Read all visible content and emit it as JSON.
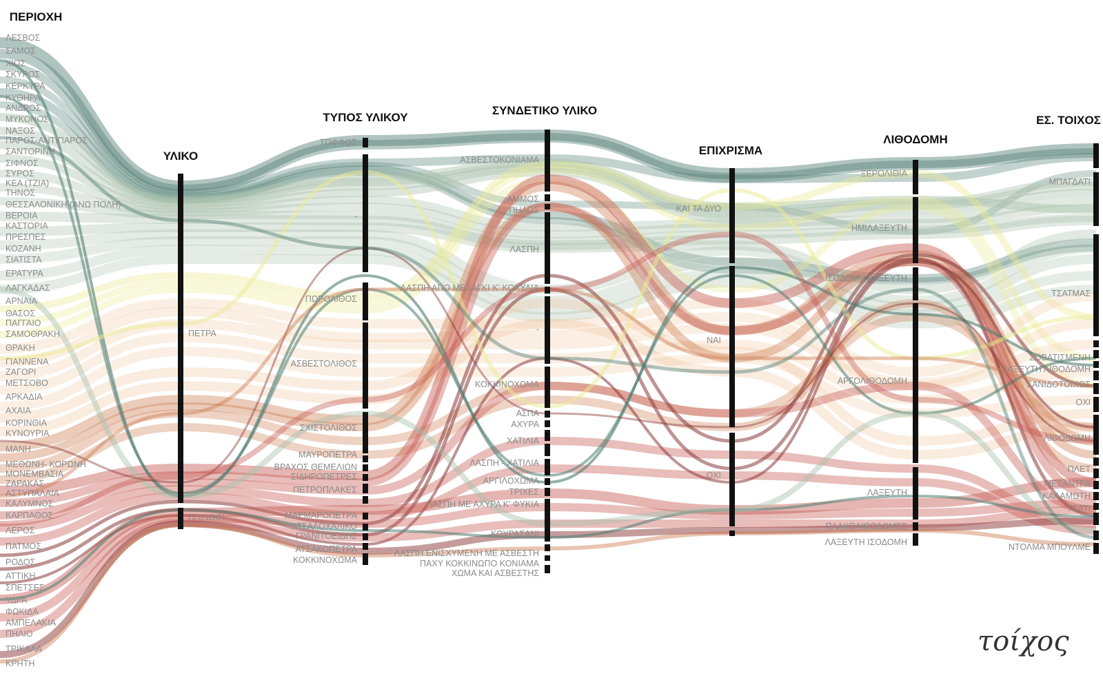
{
  "brand": "τοίχος",
  "colors": {
    "axis": "#111111",
    "label": "#8a8a8a",
    "green": "#4f7d72",
    "sage": "#a9c1ad",
    "yellow": "#ecec96",
    "peach": "#f1c9a2",
    "orange": "#cd7d52",
    "red": "#c65a52",
    "brown": "#8b3a3a"
  },
  "axes": [
    {
      "name": "ΠΕΡΙΟΧΗ",
      "labels": [
        "ΛΕΣΒΟΣ",
        "ΣΑΜΟΣ",
        "ΧΙΟΣ",
        "ΣΚΥΡΟΣ",
        "ΚΕΡΚΥΡΑ",
        "ΚΥΘΗΡΑ",
        "ΑΝΔΡΟΣ",
        "ΜΥΚΟΝΟΣ",
        "ΝΑΞΟΣ",
        "ΠΑΡΟΣ-ΑΝΤΙΠΑΡΟΣ",
        "ΣΑΝΤΟΡΙΝΗ",
        "ΣΙΦΝΟΣ",
        "ΣΥΡΟΣ",
        "ΚΕΑ (ΤΖΙΑ)",
        "ΤΗΝΟΣ",
        "ΘΕΣΣΑΛΟΝΙΚΗ (ΑΝΩ ΠΟΛΗ)",
        "ΒΕΡΟΙΑ",
        "ΚΑΣΤΟΡΙΑ",
        "ΠΡΕΣΠΕΣ",
        "ΚΟΖΑΝΗ",
        "ΣΙΑΤΙΣΤΑ",
        "ΕΡΑΤΥΡΑ",
        "ΛΑΓΚΑΔΑΣ",
        "ΑΡΝΑΙΑ",
        "ΘΑΣΟΣ",
        "ΠΑΓΓΑΙΟ",
        "ΣΑΜΟΘΡΑΚΗ",
        "ΘΡΑΚΗ",
        "ΓΙΑΝΝΕΝΑ",
        "ΖΑΓΟΡΙ",
        "ΜΕΤΣΟΒΟ",
        "ΑΡΚΑΔΙΑ",
        "ΑΧΑΙΑ",
        "ΚΟΡΙΝΘΙΑ",
        "ΚΥΝΟΥΡΙΑ",
        "ΜΑΝΗ",
        "ΜΕΘΩΝΗ- ΚΟΡΩΝΗ",
        "ΜΟΝΕΜΒΑΣΙΑ",
        "ΖΑΡΑΚΑΣ",
        "ΑΣΤΥΠΑΛΑΙΑ",
        "ΚΑΛΥΜΝΟΣ",
        "ΚΑΡΠΑΘΟΣ",
        "ΛΕΡΟΣ",
        "ΠΑΤΜΟΣ",
        "ΡΟΔΟΣ",
        "ΑΤΤΙΚΗ",
        "ΣΠΕΤΣΕΣ",
        "ΥΔΡΑ",
        "ΦΩΚΙΔΑ",
        "ΑΜΠΕΛΑΚΙΑ",
        "ΠΗΛΙΟ",
        "ΤΡΙΚΑΛΑ",
        "ΚΡΗΤΗ"
      ]
    },
    {
      "name": "ΥΛΙΚΟ",
      "labels": [
        "ΠΕΤΡΑ",
        "ΠΛΙΝΘΟΙ"
      ]
    },
    {
      "name": "ΤΥΠΟΣ ΥΛΙΚΟΥ",
      "labels": [
        "ΤΟΦΦΟΣ",
        "-",
        "ΠΩΡΟΛΙΘΟΣ",
        "ΑΣΒΕΣΤΟΛΙΘΟΣ",
        "ΣΧΙΣΤΟΛΙΘΟΣ",
        "ΜΑΥΡΟΠΕΤΡΑ",
        "ΒΡΑΧΟΣ ΘΕΜΕΛΙΩΝ",
        "ΣΙΔΗΡΟΠΕΤΡΕΣ",
        "ΠΕΤΡΟΠΛΑΚΕΣ",
        "ΜΑΡΜΑΡΟΠΕΤΡΑ",
        "ΑΤΣΑΛΟΧΑΛΙΚΟ",
        "ΓΡΑΝΙΤΟΕΙΔΗΣ",
        "ΑΤΣΑΚΟΠΕΤΡΑ",
        "ΚΟΚΚΙΝΟΧΩΜΑ"
      ]
    },
    {
      "name": "ΣΥΝΔΕΤΙΚΟ ΥΛΙΚΟ",
      "labels": [
        "ΑΣΒΕΣΤΟΚΟΝΙΑΜΑ",
        "ΑΜΜΟΣ",
        "ΠΗΛΟΣ",
        "ΛΑΣΠΗ",
        "ΛΑΣΠΗ ΑΠΟ ΜΕΛΑΓΚΙ Κ' ΚΟΧΥΛΙΑ",
        "-",
        "ΚΟΚΚΙΝΟΧΩΜΑ",
        "ΑΣΠΑ",
        "ΑΧΥΡΑ",
        "ΧΑΤΙΛΙΑ",
        "ΛΑΣΠΗ - ΧΑΤΙΛΙΑ",
        "ΑΡΓΙΛΟΧΩΜΑ",
        "ΤΡΙΧΕΣ",
        "ΛΑΣΠΗ ΜΕ ΑΧΥΡΑ Κ' ΦΥΚΙΑ",
        "ΚΟΥΡΑΣΑΝΙ",
        "ΛΑΣΠΗ ΕΝΙΣΧΥΜΕΝΗ ΜΕ ΑΣΒΕΣΤΗ",
        "ΠΑΧΥ ΚΟΚΚΙΝΩΠΟ ΚΟΝΙΑΜΑ",
        "ΧΩΜΑ ΚΑΙ ΑΣΒΕΣΤΗΣ"
      ]
    },
    {
      "name": "ΕΠΙΧΡΙΣΜΑ",
      "labels": [
        "ΚΑΙ ΤΑ ΔΥΟ",
        "ΝΑΙ",
        "ΟΧΙ"
      ]
    },
    {
      "name": "ΛΙΘΟΔΟΜΗ",
      "labels": [
        "ΞΕΡΟΛΙΘΙΑ",
        "ΗΜΙΛΑΞΕΥΤΗ",
        "ΙΣΟΔΟΜΗ ΛΑΞΕΥΤΗ",
        "ΑΡΓΟΛΙΘΟΔΟΜΗ",
        "ΛΑΞΕΥΤΗ",
        "ΠΛΑΚΟΛΙΘΟΔΟΜΕΣ",
        "ΛΑΞΕΥΤΗ ΙΣΟΔΟΜΗ"
      ]
    },
    {
      "name": "ΕΣ. ΤΟΙΧΟΣ",
      "labels": [
        "ΜΠΑΓΔΑΤΙ",
        "ΤΣΑΤΜΑΣ",
        "ΣΟΒΑΤΙΣΜΕΝΗ",
        "ΛΑΞΕΥΤΗ ΛΙΘΟΔΟΜΗ",
        "ΣΑΝΙΔΟΤΟΙΧΟΣ",
        "ΟΧΙ",
        "ΛΙΘΟΔΟΜΗ",
        "ΠΛΕΤ",
        "ΜΕΣΑΝΤΡΑ",
        "ΚΑΛΑΜΩΤΗ",
        "ΤΣΑΤΙ",
        "ΝΤΟΛΜΑ ΜΠΟΥΛΜΕ"
      ]
    }
  ]
}
